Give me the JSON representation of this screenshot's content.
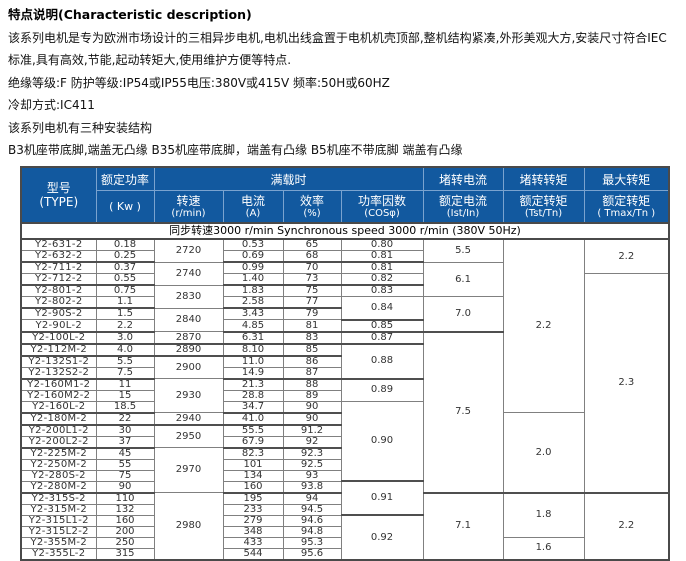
{
  "intro": {
    "title": "特点说明(Characteristic description)",
    "lines": [
      "该系列电机是专为欧洲市场设计的三相异步电机,电机出线盒置于电机机壳顶部,整机结构紧凑,外形美观大方,安装尺寸符合IEC",
      "标准,具有高效,节能,起动转矩大,使用维护方便等特点.",
      "绝缘等级:F 防护等级:IP54或IP55电压:380V或415V 频率:50H或60HZ",
      "冷却方式:IC411",
      "该系列电机有三种安装结构",
      "B3机座带底脚,端盖无凸缘 B35机座带底脚，端盖有凸缘 B5机座不带底脚 端盖有凸缘"
    ]
  },
  "colors": {
    "header_bg": "#12599f",
    "header_divider": "#7aa3cf",
    "grid": "#808080",
    "frame": "#4a4a4a"
  },
  "table": {
    "header": {
      "type_l1": "型号",
      "type_l2": "(TYPE)",
      "power_l1": "额定功率",
      "power_l2": "( Kw )",
      "full_load": "满载时",
      "speed_l1": "转速",
      "speed_l2": "(r/min)",
      "current_l1": "电流",
      "current_l2": "(A)",
      "eff_l1": "效率",
      "eff_l2": "(%)",
      "cos_l1": "功率因数",
      "cos_l2": "(COSφ)",
      "ist_l1": "堵转电流",
      "ist_l2": "额定电流",
      "ist_l3": "(Ist/In)",
      "tst_l1": "堵转转矩",
      "tst_l2": "额定转矩",
      "tst_l3": "(Tst/Tn)",
      "tmax_l1": "最大转矩",
      "tmax_l2": "额定转矩",
      "tmax_l3": "( Tmax/Tn )"
    },
    "banner": "同步转速3000 r/min  Synchronous speed  3000 r/min (380V  50Hz)",
    "rows": {
      "type": [
        "Y2-631-2",
        "Y2-632-2",
        "Y2-711-2",
        "Y2-712-2",
        "Y2-801-2",
        "Y2-802-2",
        "Y2-90S-2",
        "Y2-90L-2",
        "Y2-100L-2",
        "Y2-112M-2",
        "Y2-132S1-2",
        "Y2-132S2-2",
        "Y2-160M1-2",
        "Y2-160M2-2",
        "Y2-160L-2",
        "Y2-180M-2",
        "Y2-200L1-2",
        "Y2-200L2-2",
        "Y2-225M-2",
        "Y2-250M-2",
        "Y2-280S-2",
        "Y2-280M-2",
        "Y2-315S-2",
        "Y2-315M-2",
        "Y2-315L1-2",
        "Y2-315L2-2",
        "Y2-355M-2",
        "Y2-355L-2"
      ],
      "kw": [
        "0.18",
        "0.25",
        "0.37",
        "0.55",
        "0.75",
        "1.1",
        "1.5",
        "2.2",
        "3.0",
        "4.0",
        "5.5",
        "7.5",
        "11",
        "15",
        "18.5",
        "22",
        "30",
        "37",
        "45",
        "55",
        "75",
        "90",
        "110",
        "132",
        "160",
        "200",
        "250",
        "315"
      ],
      "current": [
        "0.53",
        "0.69",
        "0.99",
        "1.40",
        "1.83",
        "2.58",
        "3.43",
        "4.85",
        "6.31",
        "8.10",
        "11.0",
        "14.9",
        "21.3",
        "28.8",
        "34.7",
        "41.0",
        "55.5",
        "67.9",
        "82.3",
        "101",
        "134",
        "160",
        "195",
        "233",
        "279",
        "348",
        "433",
        "544"
      ],
      "eff": [
        "65",
        "68",
        "70",
        "73",
        "75",
        "77",
        "79",
        "81",
        "83",
        "85",
        "86",
        "87",
        "88",
        "89",
        "90",
        "90",
        "91.2",
        "92",
        "92.3",
        "92.5",
        "93",
        "93.8",
        "94",
        "94.5",
        "94.6",
        "94.8",
        "95.3",
        "95.6"
      ]
    },
    "merged": {
      "speed": [
        [
          "2720",
          2
        ],
        [
          "2740",
          2
        ],
        [
          "2830",
          2
        ],
        [
          "2840",
          2
        ],
        [
          "2870",
          1
        ],
        [
          "2890",
          1
        ],
        [
          "2900",
          2
        ],
        [
          "2930",
          3
        ],
        [
          "2940",
          1
        ],
        [
          "2950",
          2
        ],
        [
          "2970",
          4
        ],
        [
          "2980",
          6
        ]
      ],
      "cos": [
        [
          "0.80",
          1
        ],
        [
          "0.81",
          1
        ],
        [
          "0.81",
          1
        ],
        [
          "0.82",
          1
        ],
        [
          "0.83",
          1
        ],
        [
          "0.84",
          2
        ],
        [
          "0.85",
          1
        ],
        [
          "0.87",
          1
        ],
        [
          "0.88",
          3
        ],
        [
          "0.89",
          2
        ],
        [
          "0.90",
          7
        ],
        [
          "0.91",
          3
        ],
        [
          "0.92",
          4
        ]
      ],
      "ist": [
        [
          "5.5",
          2
        ],
        [
          "6.1",
          3
        ],
        [
          "7.0",
          3
        ],
        [
          "7.5",
          14
        ],
        [
          "7.1",
          6
        ]
      ],
      "tst": [
        [
          "2.2",
          15
        ],
        [
          "2.0",
          7
        ],
        [
          "1.8",
          4
        ],
        [
          "1.6",
          2
        ]
      ],
      "tmax": [
        [
          "2.2",
          3
        ],
        [
          "2.3",
          19
        ],
        [
          "2.2",
          6
        ]
      ]
    },
    "group_end_rows": [
      1,
      3,
      5,
      7,
      8,
      9,
      11,
      14,
      15,
      17,
      21
    ]
  }
}
